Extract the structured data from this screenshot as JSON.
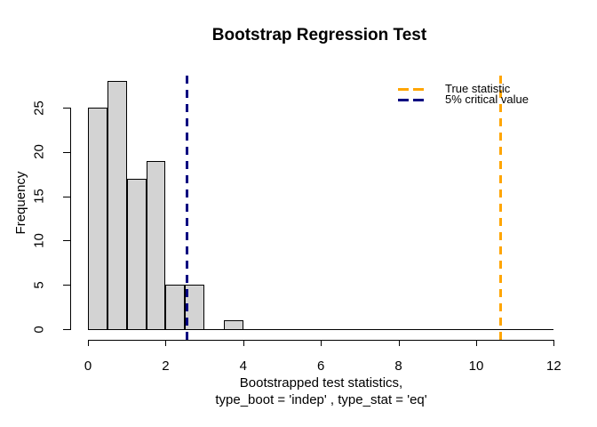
{
  "title": "Bootstrap Regression Test",
  "legend": {
    "items": [
      {
        "label": "True statistic",
        "color": "#FFA500"
      },
      {
        "label": "5% critical value",
        "color": "#000080"
      }
    ]
  },
  "chart_data": {
    "type": "bar",
    "subtype": "histogram",
    "title": "Bootstrap Regression Test",
    "xlabel_line1": "Bootstrapped test statistics,",
    "xlabel_line2": "type_boot = 'indep' , type_stat = 'eq'",
    "ylabel": "Frequency",
    "bin_start": 0,
    "bin_width": 0.5,
    "counts": [
      25,
      28,
      17,
      19,
      5,
      5,
      0,
      1,
      0,
      0,
      0,
      0,
      0,
      0,
      0,
      0,
      0,
      0,
      0,
      0,
      0,
      0,
      0,
      0
    ],
    "xlim": [
      0,
      12
    ],
    "ylim": [
      0,
      28
    ],
    "x_ticks": [
      0,
      2,
      4,
      6,
      8,
      10,
      12
    ],
    "y_ticks": [
      0,
      5,
      10,
      15,
      20,
      25
    ],
    "grid": false,
    "legend_position": "topright",
    "bar_fill": "#d3d3d3",
    "bar_border": "#000000",
    "vlines": [
      {
        "name": "true-statistic",
        "x": 10.64,
        "label": "True statistic",
        "color": "#FFA500",
        "style": "dashed"
      },
      {
        "name": "critical-value",
        "x": 2.56,
        "label": "5% critical value",
        "color": "#000080",
        "style": "dashed"
      }
    ]
  }
}
